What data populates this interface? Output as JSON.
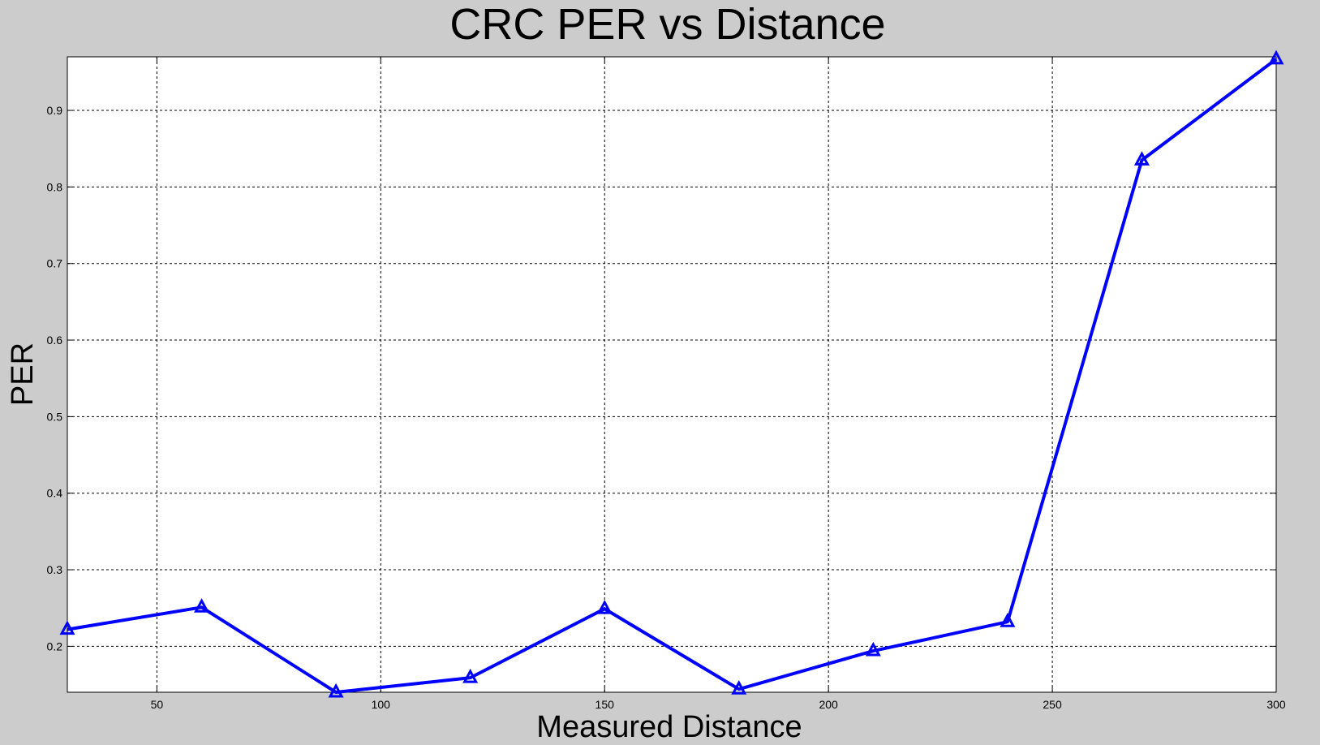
{
  "chart_data": {
    "type": "line",
    "title": "CRC PER vs Distance",
    "xlabel": "Measured Distance",
    "ylabel": "PER",
    "xlim": [
      30,
      300
    ],
    "ylim": [
      0.14,
      0.97
    ],
    "xticks": [
      50,
      100,
      150,
      200,
      250,
      300
    ],
    "yticks": [
      0.2,
      0.3,
      0.4,
      0.5,
      0.6,
      0.7,
      0.8,
      0.9
    ],
    "grid": true,
    "series": [
      {
        "color": "#0000ff",
        "marker": "triangle",
        "x": [
          30,
          60,
          90,
          120,
          150,
          180,
          210,
          240,
          270,
          300
        ],
        "y": [
          0.222,
          0.251,
          0.14,
          0.159,
          0.249,
          0.144,
          0.194,
          0.232,
          0.835,
          0.967
        ]
      }
    ]
  }
}
